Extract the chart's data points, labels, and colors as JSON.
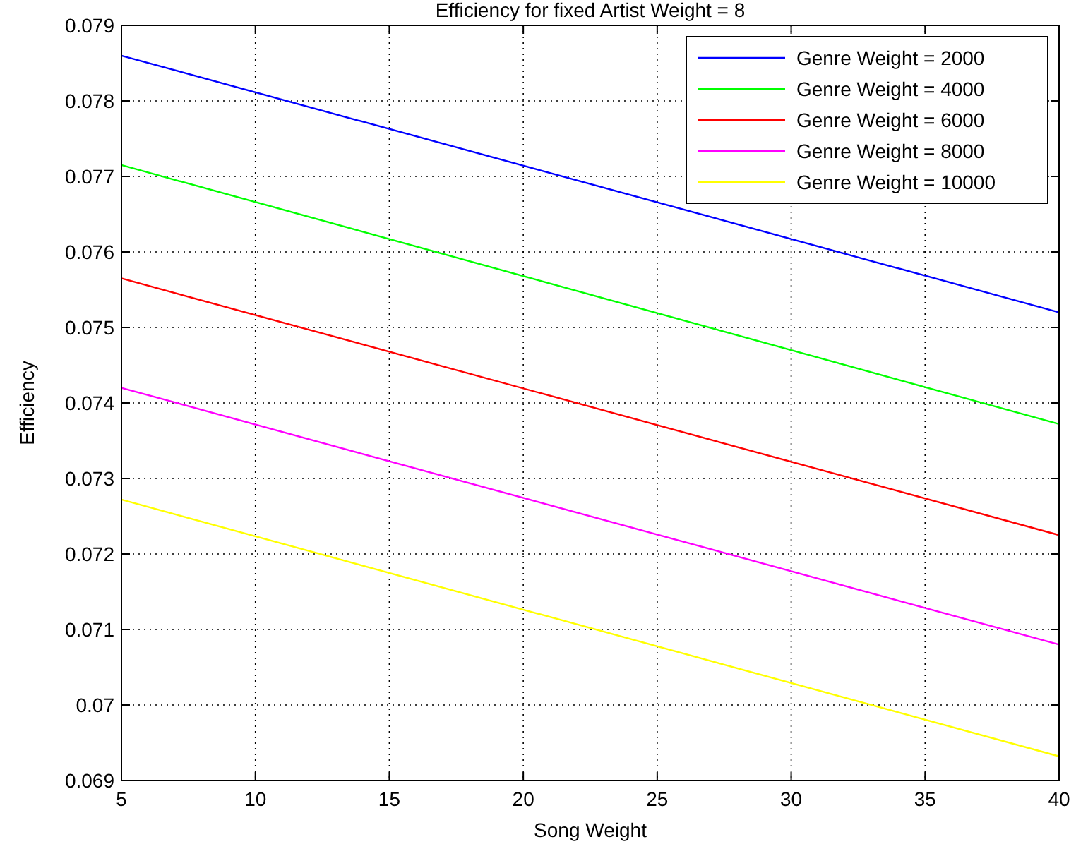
{
  "chart_data": {
    "type": "line",
    "title": "Efficiency for fixed Artist Weight = 8",
    "xlabel": "Song Weight",
    "ylabel": "Efficiency",
    "x": [
      5,
      40
    ],
    "series": [
      {
        "name": "Genre Weight = 2000",
        "color": "#0000ff",
        "values": [
          0.0786,
          0.0752
        ]
      },
      {
        "name": "Genre Weight = 4000",
        "color": "#00ff00",
        "values": [
          0.07715,
          0.07372
        ]
      },
      {
        "name": "Genre Weight = 6000",
        "color": "#ff0000",
        "values": [
          0.07565,
          0.07225
        ]
      },
      {
        "name": "Genre Weight = 8000",
        "color": "#ff00ff",
        "values": [
          0.0742,
          0.0708
        ]
      },
      {
        "name": "Genre Weight = 10000",
        "color": "#ffff00",
        "values": [
          0.07272,
          0.06932
        ]
      }
    ],
    "xlim": [
      5,
      40
    ],
    "xticks": [
      5,
      10,
      15,
      20,
      25,
      30,
      35,
      40
    ],
    "ylim": [
      0.069,
      0.079
    ],
    "yticks": [
      0.069,
      0.07,
      0.071,
      0.072,
      0.073,
      0.074,
      0.075,
      0.076,
      0.077,
      0.078,
      0.079
    ],
    "grid": true,
    "legend": "top right",
    "line_style": "solid",
    "marker": "none"
  }
}
